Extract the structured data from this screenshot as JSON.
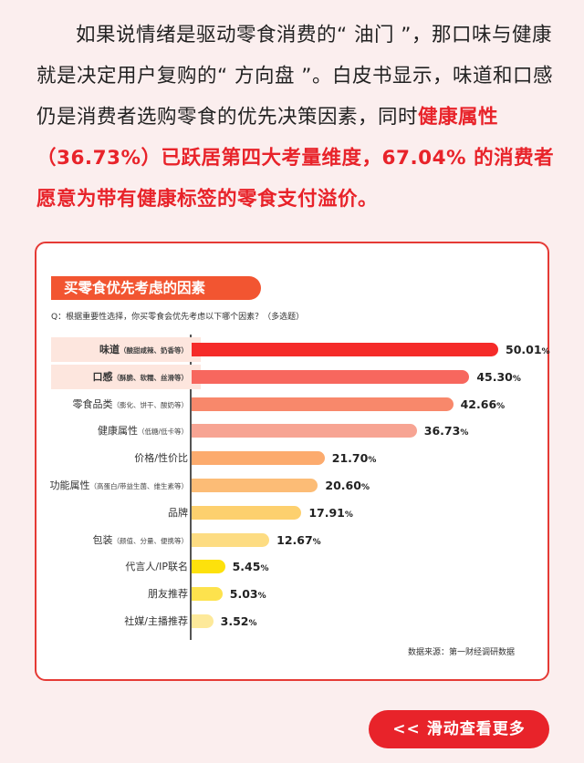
{
  "intro": {
    "part1": "如果说情绪是驱动零食消费的“ 油门 ”，那口味与健康就是决定用户复购的“ 方向盘 ”。白皮书显示，味道和口感仍是消费者选购零食的优先决策因素，同时",
    "highlight": "健康属性（36.73%）已跃居第四大考量维度，67.04% 的消费者愿意为带有健康标签的零食支付溢价。"
  },
  "card": {
    "title": "买零食优先考虑的因素",
    "question": "Q：根据重要性选择，你买零食会优先考虑以下哪个因素？（多选题）",
    "source": "数据来源：第一财经调研数据"
  },
  "button": {
    "label": "<< 滑动查看更多"
  },
  "chart_data": {
    "type": "bar",
    "orientation": "horizontal",
    "title": "买零食优先考虑的因素",
    "categories": [
      {
        "name": "味道",
        "note": "（酸甜咸辣、奶香等）",
        "value": 50.01,
        "display": "50.01",
        "color": "#f52b29"
      },
      {
        "name": "口感",
        "note": "（酥脆、软糯、丝滑等）",
        "value": 45.3,
        "display": "45.30",
        "color": "#f7675e"
      },
      {
        "name": "零食品类",
        "note": "（膨化、饼干、酸奶等）",
        "value": 42.66,
        "display": "42.66",
        "color": "#f8886b"
      },
      {
        "name": "健康属性",
        "note": "（低糖/低卡等）",
        "value": 36.73,
        "display": "36.73",
        "color": "#f7a493"
      },
      {
        "name": "价格/性价比",
        "note": "",
        "value": 21.7,
        "display": "21.70",
        "color": "#fcab6e"
      },
      {
        "name": "功能属性",
        "note": "（高蛋白/带益生菌、维生素等）",
        "value": 20.6,
        "display": "20.60",
        "color": "#fcbc76"
      },
      {
        "name": "品牌",
        "note": "",
        "value": 17.91,
        "display": "17.91",
        "color": "#fdd06e"
      },
      {
        "name": "包装",
        "note": "（颜值、分量、便携等）",
        "value": 12.67,
        "display": "12.67",
        "color": "#fddc82"
      },
      {
        "name": "代言人/IP联名",
        "note": "",
        "value": 5.45,
        "display": "5.45",
        "color": "#fde10c"
      },
      {
        "name": "朋友推荐",
        "note": "",
        "value": 5.03,
        "display": "5.03",
        "color": "#fde24d"
      },
      {
        "name": "社媒/主播推荐",
        "note": "",
        "value": 3.52,
        "display": "3.52",
        "color": "#fde99a"
      }
    ],
    "unit": "%",
    "xlim": [
      0,
      50.01
    ],
    "highlighted": [
      "味道",
      "口感"
    ],
    "grid": false,
    "legend": "none"
  }
}
